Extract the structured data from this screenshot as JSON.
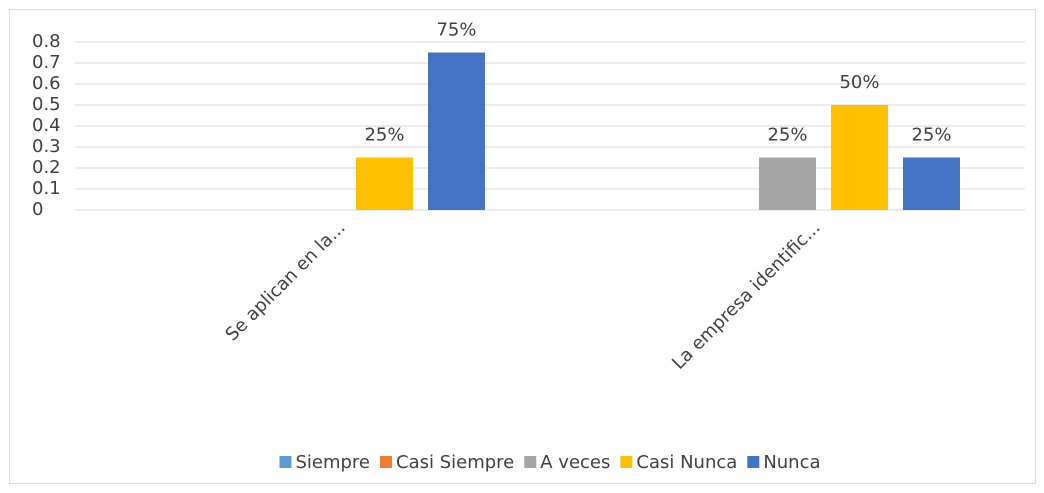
{
  "chart_data": {
    "type": "bar",
    "categories": [
      "Se aplican en la...",
      "La empresa identific..."
    ],
    "series": [
      {
        "name": "Siempre",
        "color": "#5b9bd5",
        "values": [
          0,
          0
        ],
        "value_labels": [
          null,
          null
        ]
      },
      {
        "name": "Casi Siempre",
        "color": "#ed7d31",
        "values": [
          0,
          0
        ],
        "value_labels": [
          null,
          null
        ]
      },
      {
        "name": "A veces",
        "color": "#a5a5a5",
        "values": [
          0,
          0.25
        ],
        "value_labels": [
          null,
          "25%"
        ]
      },
      {
        "name": "Casi Nunca",
        "color": "#ffc000",
        "values": [
          0.25,
          0.5
        ],
        "value_labels": [
          "25%",
          "50%"
        ]
      },
      {
        "name": "Nunca",
        "color": "#4472c4",
        "values": [
          0.75,
          0.25
        ],
        "value_labels": [
          "75%",
          "25%"
        ]
      }
    ],
    "ylim": [
      0,
      0.8
    ],
    "yticks": [
      0,
      0.1,
      0.2,
      0.3,
      0.4,
      0.5,
      0.6,
      0.7,
      0.8
    ],
    "grid": true,
    "legend": "bottom"
  }
}
